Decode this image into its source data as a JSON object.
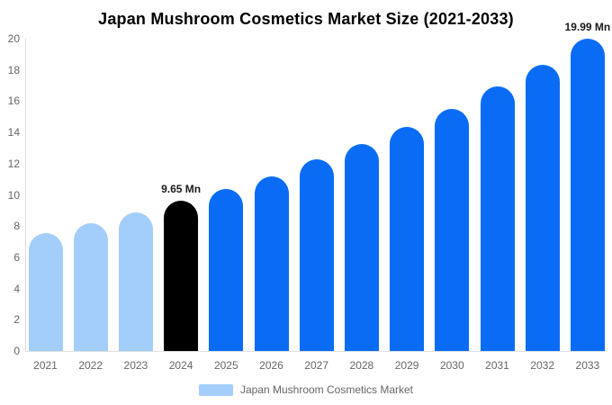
{
  "title": "Japan Mushroom Cosmetics Market Size (2021-2033)",
  "legend": {
    "label": "Japan Mushroom Cosmetics Market"
  },
  "colors": {
    "light_blue": "#a3cdfa",
    "blue": "#0a6cf5",
    "black": "#000000",
    "axis_text": "#666666",
    "axis_line": "#d9d9d9",
    "baseline": "#e0e0e0",
    "title_text": "#000000",
    "annotation_text": "#1a1a1a",
    "background": "#ffffff"
  },
  "chart_data": {
    "type": "bar",
    "title": "Japan Mushroom Cosmetics Market Size (2021-2033)",
    "categories": [
      "2021",
      "2022",
      "2023",
      "2024",
      "2025",
      "2026",
      "2027",
      "2028",
      "2029",
      "2030",
      "2031",
      "2032",
      "2033"
    ],
    "values": [
      7.55,
      8.2,
      8.9,
      9.65,
      10.35,
      11.2,
      12.25,
      13.25,
      14.35,
      15.5,
      16.95,
      18.3,
      19.99
    ],
    "bar_colors": [
      "#a3cdfa",
      "#a3cdfa",
      "#a3cdfa",
      "#000000",
      "#0a6cf5",
      "#0a6cf5",
      "#0a6cf5",
      "#0a6cf5",
      "#0a6cf5",
      "#0a6cf5",
      "#0a6cf5",
      "#0a6cf5",
      "#0a6cf5"
    ],
    "annotations": [
      {
        "category": "2024",
        "index": 3,
        "label": "9.65 Mn"
      },
      {
        "category": "2033",
        "index": 12,
        "label": "19.99 Mn"
      }
    ],
    "xlabel": "",
    "ylabel": "",
    "ylim": [
      0,
      20
    ],
    "yticks": [
      0,
      2,
      4,
      6,
      8,
      10,
      12,
      14,
      16,
      18,
      20
    ],
    "grid": false,
    "legend_entries": [
      "Japan Mushroom Cosmetics Market"
    ],
    "legend_position": "bottom"
  }
}
